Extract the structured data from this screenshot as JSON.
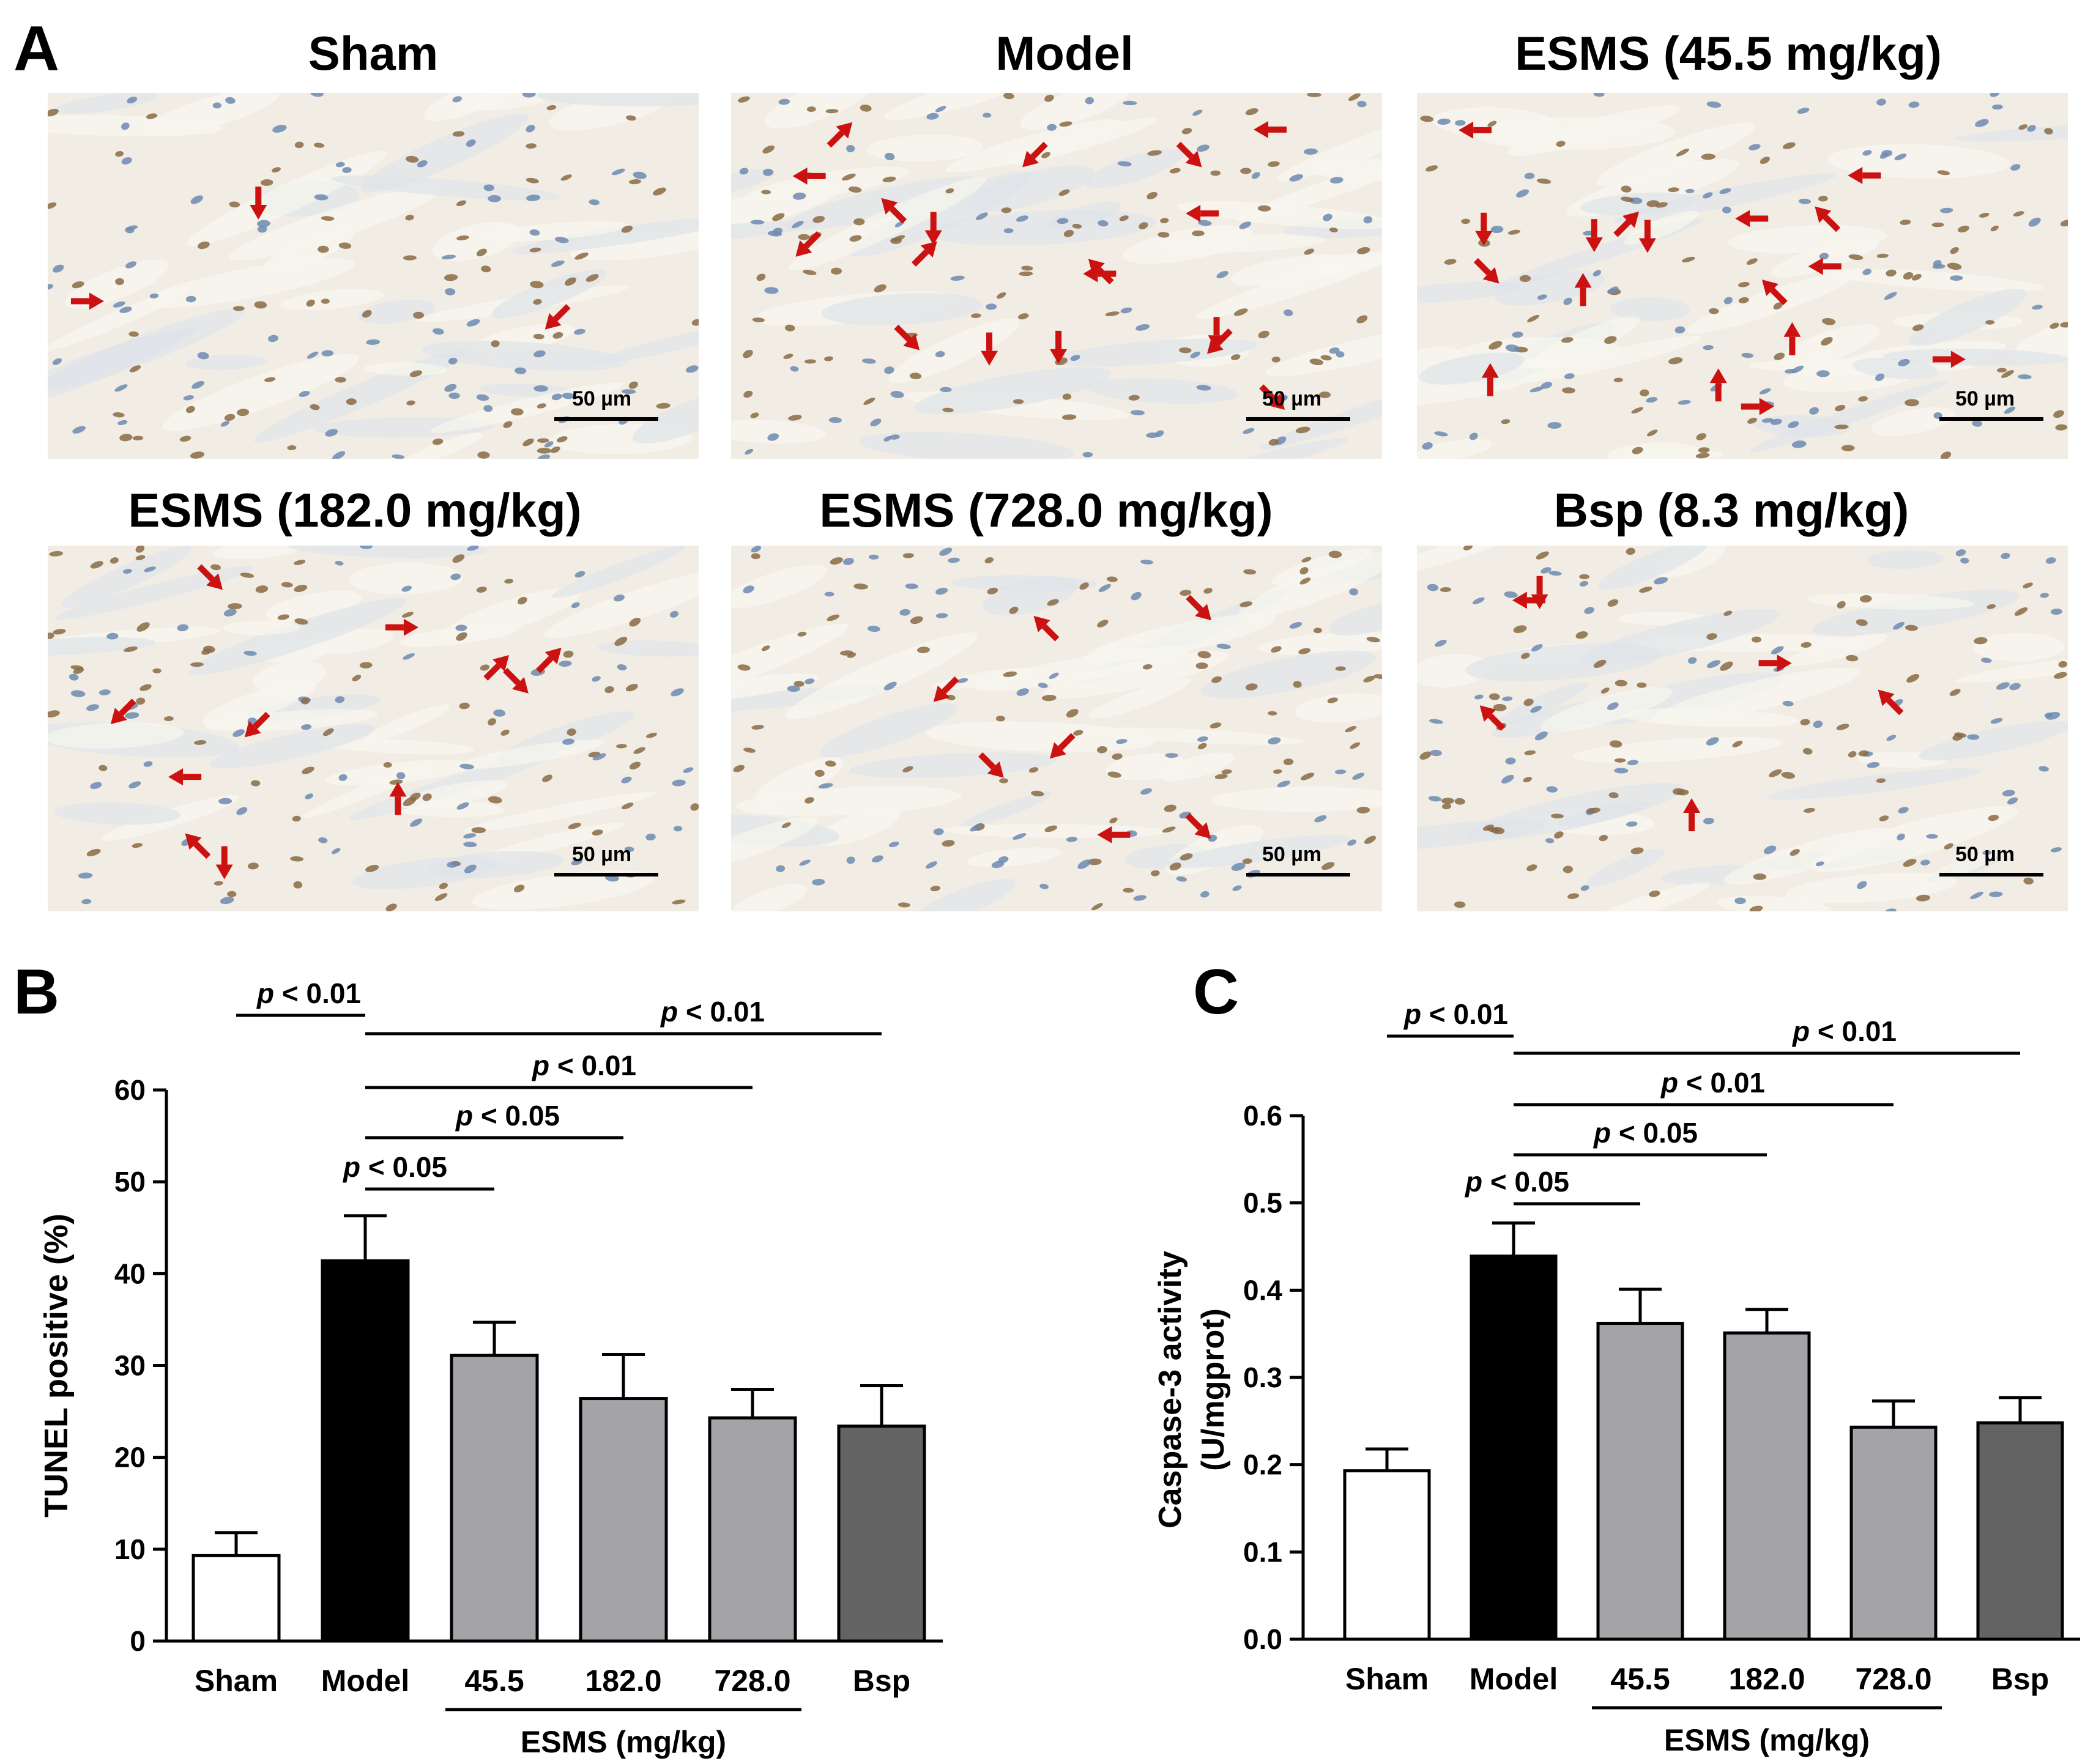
{
  "panel_labels": {
    "a": "A",
    "b": "B",
    "c": "C"
  },
  "micrographs": [
    {
      "title": "Sham",
      "scale_label": "50 µm",
      "arrow_count": 3
    },
    {
      "title": "Model",
      "scale_label": "50 µm",
      "arrow_count": 18
    },
    {
      "title": "ESMS (45.5 mg/kg)",
      "scale_label": "50 µm",
      "arrow_count": 17
    },
    {
      "title": "ESMS (182.0 mg/kg)",
      "scale_label": "50 µm",
      "arrow_count": 11
    },
    {
      "title": "ESMS (728.0 mg/kg)",
      "scale_label": "50 µm",
      "arrow_count": 7
    },
    {
      "title": "Bsp (8.3 mg/kg)",
      "scale_label": "50 µm",
      "arrow_count": 6
    }
  ],
  "chart_data": [
    {
      "type": "bar",
      "panel": "B",
      "ylabel": "TUNEL positive (%)",
      "xlabel": "ESMS (mg/kg)",
      "categories": [
        "Sham",
        "Model",
        "45.5",
        "182.0",
        "728.0",
        "Bsp"
      ],
      "values": [
        9.3,
        41.4,
        31.1,
        26.4,
        24.3,
        23.4
      ],
      "errors": [
        2.5,
        4.9,
        3.6,
        4.8,
        3.1,
        4.4
      ],
      "colors": [
        "#ffffff",
        "#000000",
        "#a4a4a8",
        "#a4a4a8",
        "#a4a4a8",
        "#636363"
      ],
      "ylim": [
        0,
        60
      ],
      "yticks": [
        "0",
        "10",
        "20",
        "30",
        "40",
        "50",
        "60"
      ],
      "significance": [
        {
          "from": 0,
          "to": 1,
          "label": "< 0.01"
        },
        {
          "from": 1,
          "to": 5,
          "label": "< 0.01"
        },
        {
          "from": 1,
          "to": 4,
          "label": "< 0.01"
        },
        {
          "from": 1,
          "to": 3,
          "label": "< 0.05"
        },
        {
          "from": 1,
          "to": 2,
          "label": "< 0.05"
        }
      ],
      "p_symbol": "p"
    },
    {
      "type": "bar",
      "panel": "C",
      "ylabel": "Caspase-3 activity",
      "ylabel2": "(U/mgprot)",
      "xlabel": "ESMS (mg/kg)",
      "categories": [
        "Sham",
        "Model",
        "45.5",
        "182.0",
        "728.0",
        "Bsp"
      ],
      "values": [
        0.193,
        0.439,
        0.362,
        0.351,
        0.243,
        0.248
      ],
      "errors": [
        0.025,
        0.038,
        0.039,
        0.027,
        0.03,
        0.029
      ],
      "colors": [
        "#ffffff",
        "#000000",
        "#a4a4a8",
        "#a4a4a8",
        "#a4a4a8",
        "#636363"
      ],
      "ylim": [
        0,
        0.6
      ],
      "yticks": [
        "0.0",
        "0.1",
        "0.2",
        "0.3",
        "0.4",
        "0.5",
        "0.6"
      ],
      "significance": [
        {
          "from": 0,
          "to": 1,
          "label": "< 0.01"
        },
        {
          "from": 1,
          "to": 5,
          "label": "< 0.01"
        },
        {
          "from": 1,
          "to": 4,
          "label": "< 0.01"
        },
        {
          "from": 1,
          "to": 3,
          "label": "< 0.05"
        },
        {
          "from": 1,
          "to": 2,
          "label": "< 0.05"
        }
      ],
      "p_symbol": "p"
    }
  ],
  "colors": {
    "arrow": "#cc1111",
    "tissue_bg": "#f1ede4",
    "nucleus_brown": "#8a6a44",
    "nucleus_blue": "#6d8ab0"
  }
}
